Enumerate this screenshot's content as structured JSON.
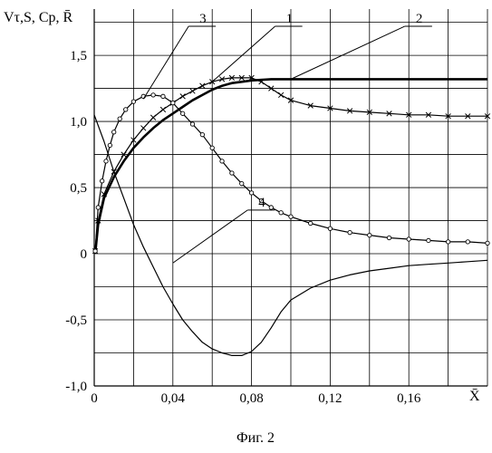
{
  "chart_data": {
    "type": "line",
    "ylabel": "Vτ,S, Cp, R̄",
    "xlabel": "X̄",
    "caption": "Фиг. 2",
    "xlim": [
      0,
      0.2
    ],
    "ylim": [
      -1.0,
      1.85
    ],
    "grid": true,
    "xticks": [
      0,
      0.04,
      0.08,
      0.12,
      0.16
    ],
    "xtick_labels": [
      "0",
      "0,04",
      "0,08",
      "0,12",
      "0,16"
    ],
    "yticks": [
      1.5,
      1.0,
      0.5,
      0,
      -0.5,
      -1.0
    ],
    "ytick_labels": [
      "1,5",
      "1,0",
      "0,5",
      "0",
      "-0,5",
      "-1,0"
    ],
    "series": [
      {
        "name": "1",
        "marker": "x",
        "points": [
          [
            0.0005,
            0.02
          ],
          [
            0.002,
            0.25
          ],
          [
            0.005,
            0.45
          ],
          [
            0.01,
            0.62
          ],
          [
            0.015,
            0.75
          ],
          [
            0.02,
            0.86
          ],
          [
            0.025,
            0.95
          ],
          [
            0.03,
            1.03
          ],
          [
            0.035,
            1.09
          ],
          [
            0.04,
            1.14
          ],
          [
            0.045,
            1.19
          ],
          [
            0.05,
            1.23
          ],
          [
            0.055,
            1.27
          ],
          [
            0.06,
            1.3
          ],
          [
            0.065,
            1.32
          ],
          [
            0.07,
            1.33
          ],
          [
            0.075,
            1.33
          ],
          [
            0.08,
            1.33
          ],
          [
            0.085,
            1.3
          ],
          [
            0.09,
            1.25
          ],
          [
            0.095,
            1.2
          ],
          [
            0.1,
            1.16
          ],
          [
            0.11,
            1.12
          ],
          [
            0.12,
            1.1
          ],
          [
            0.13,
            1.08
          ],
          [
            0.14,
            1.07
          ],
          [
            0.15,
            1.06
          ],
          [
            0.16,
            1.05
          ],
          [
            0.17,
            1.05
          ],
          [
            0.18,
            1.04
          ],
          [
            0.19,
            1.04
          ],
          [
            0.2,
            1.04
          ]
        ]
      },
      {
        "name": "2",
        "marker": "none",
        "thick": true,
        "points": [
          [
            0.0005,
            0.0
          ],
          [
            0.002,
            0.22
          ],
          [
            0.005,
            0.42
          ],
          [
            0.01,
            0.58
          ],
          [
            0.015,
            0.7
          ],
          [
            0.02,
            0.8
          ],
          [
            0.025,
            0.88
          ],
          [
            0.03,
            0.95
          ],
          [
            0.035,
            1.01
          ],
          [
            0.04,
            1.06
          ],
          [
            0.045,
            1.11
          ],
          [
            0.05,
            1.16
          ],
          [
            0.055,
            1.2
          ],
          [
            0.06,
            1.24
          ],
          [
            0.065,
            1.27
          ],
          [
            0.07,
            1.29
          ],
          [
            0.075,
            1.3
          ],
          [
            0.08,
            1.31
          ],
          [
            0.09,
            1.32
          ],
          [
            0.1,
            1.32
          ],
          [
            0.12,
            1.32
          ],
          [
            0.14,
            1.32
          ],
          [
            0.16,
            1.32
          ],
          [
            0.18,
            1.32
          ],
          [
            0.2,
            1.32
          ]
        ]
      },
      {
        "name": "3",
        "marker": "o",
        "points": [
          [
            0.0005,
            0.02
          ],
          [
            0.002,
            0.35
          ],
          [
            0.004,
            0.55
          ],
          [
            0.006,
            0.7
          ],
          [
            0.008,
            0.82
          ],
          [
            0.01,
            0.92
          ],
          [
            0.013,
            1.02
          ],
          [
            0.016,
            1.09
          ],
          [
            0.02,
            1.15
          ],
          [
            0.025,
            1.19
          ],
          [
            0.03,
            1.2
          ],
          [
            0.035,
            1.19
          ],
          [
            0.04,
            1.14
          ],
          [
            0.045,
            1.06
          ],
          [
            0.05,
            0.98
          ],
          [
            0.055,
            0.9
          ],
          [
            0.06,
            0.8
          ],
          [
            0.065,
            0.7
          ],
          [
            0.07,
            0.61
          ],
          [
            0.075,
            0.53
          ],
          [
            0.08,
            0.46
          ],
          [
            0.085,
            0.4
          ],
          [
            0.09,
            0.35
          ],
          [
            0.095,
            0.31
          ],
          [
            0.1,
            0.28
          ],
          [
            0.11,
            0.23
          ],
          [
            0.12,
            0.19
          ],
          [
            0.13,
            0.16
          ],
          [
            0.14,
            0.14
          ],
          [
            0.15,
            0.12
          ],
          [
            0.16,
            0.11
          ],
          [
            0.17,
            0.1
          ],
          [
            0.18,
            0.09
          ],
          [
            0.19,
            0.09
          ],
          [
            0.2,
            0.08
          ]
        ]
      },
      {
        "name": "4",
        "marker": "none",
        "points": [
          [
            0.0,
            1.05
          ],
          [
            0.005,
            0.85
          ],
          [
            0.01,
            0.62
          ],
          [
            0.015,
            0.42
          ],
          [
            0.02,
            0.22
          ],
          [
            0.025,
            0.05
          ],
          [
            0.03,
            -0.1
          ],
          [
            0.035,
            -0.25
          ],
          [
            0.04,
            -0.38
          ],
          [
            0.045,
            -0.5
          ],
          [
            0.05,
            -0.59
          ],
          [
            0.055,
            -0.67
          ],
          [
            0.06,
            -0.72
          ],
          [
            0.065,
            -0.75
          ],
          [
            0.07,
            -0.77
          ],
          [
            0.075,
            -0.77
          ],
          [
            0.08,
            -0.74
          ],
          [
            0.085,
            -0.67
          ],
          [
            0.09,
            -0.56
          ],
          [
            0.095,
            -0.44
          ],
          [
            0.1,
            -0.35
          ],
          [
            0.11,
            -0.26
          ],
          [
            0.12,
            -0.2
          ],
          [
            0.13,
            -0.16
          ],
          [
            0.14,
            -0.13
          ],
          [
            0.15,
            -0.11
          ],
          [
            0.16,
            -0.09
          ],
          [
            0.17,
            -0.08
          ],
          [
            0.18,
            -0.07
          ],
          [
            0.19,
            -0.06
          ],
          [
            0.2,
            -0.05
          ]
        ]
      }
    ],
    "callouts": [
      {
        "label": "1",
        "anchor": [
          0.06,
          1.3
        ],
        "text_at": [
          0.092,
          1.72
        ]
      },
      {
        "label": "2",
        "anchor": [
          0.1,
          1.32
        ],
        "text_at": [
          0.158,
          1.72
        ]
      },
      {
        "label": "3",
        "anchor": [
          0.025,
          1.17
        ],
        "text_at": [
          0.048,
          1.72
        ]
      },
      {
        "label": "4",
        "anchor": [
          0.04,
          -0.07
        ],
        "text_at": [
          0.078,
          0.33
        ]
      }
    ]
  }
}
